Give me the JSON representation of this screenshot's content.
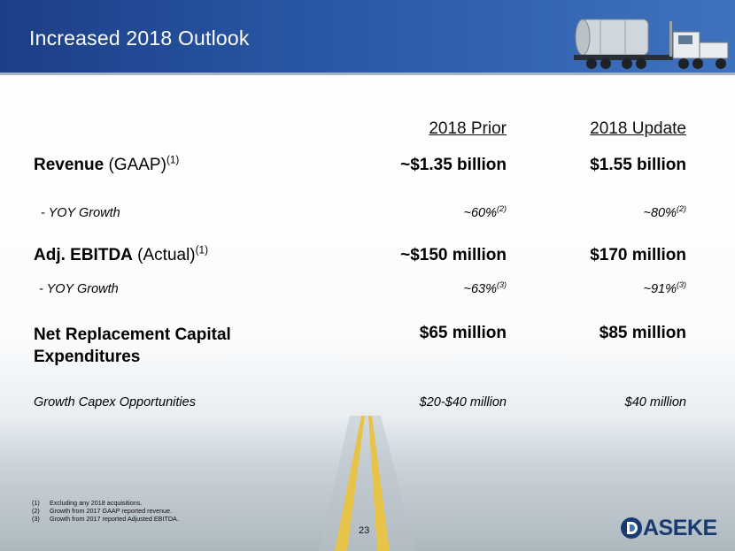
{
  "header": {
    "title": "Increased 2018 Outlook"
  },
  "columns": {
    "prior": "2018 Prior",
    "update": "2018 Update"
  },
  "rows": {
    "revenue": {
      "label_bold": "Revenue",
      "label_rest": " (GAAP)",
      "sup": "(1)",
      "prior": "~$1.35 billion",
      "update": "$1.55 billion"
    },
    "revenue_growth": {
      "label": "- YOY Growth",
      "prior": "~60%",
      "prior_sup": "(2)",
      "update": "~80%",
      "update_sup": "(2)"
    },
    "ebitda": {
      "label_bold": "Adj. EBITDA",
      "label_rest": " (Actual)",
      "sup": "(1)",
      "prior": "~$150 million",
      "update": "$170 million"
    },
    "ebitda_growth": {
      "label": "- YOY Growth",
      "prior": "~63%",
      "prior_sup": "(3)",
      "update": "~91%",
      "update_sup": "(3)"
    },
    "capex": {
      "label_line1": "Net Replacement Capital",
      "label_line2": "Expenditures",
      "prior": "$65 million",
      "update": "$85 million"
    },
    "growth_capex": {
      "label": "Growth Capex Opportunities",
      "prior": "$20-$40 million",
      "update": "$40 million"
    }
  },
  "footnotes": [
    {
      "num": "(1)",
      "text": "Excluding any 2018 acquisitions."
    },
    {
      "num": "(2)",
      "text": "Growth from 2017 GAAP reported revenue."
    },
    {
      "num": "(3)",
      "text": "Growth from 2017 reported Adjusted EBITDA."
    }
  ],
  "page_number": "23",
  "logo": {
    "text": "ASEKE",
    "color": "#1a3b6f"
  },
  "colors": {
    "header": "#2a58a6",
    "road_line": "#e8c34a"
  }
}
